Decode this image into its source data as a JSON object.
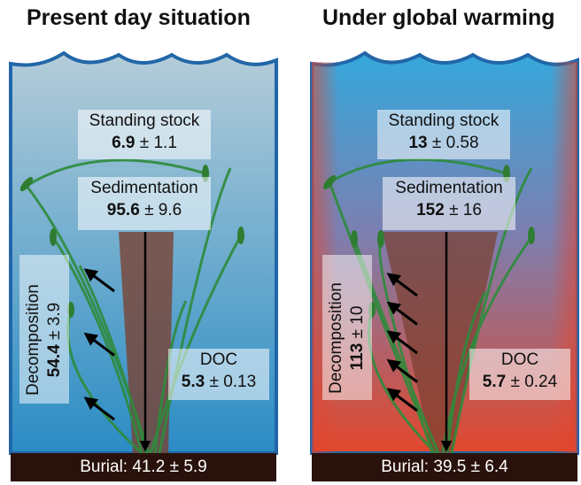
{
  "panels": [
    {
      "title": "Present day situation",
      "standing_stock": {
        "label": "Standing stock",
        "value": "6.9",
        "pm": "± 1.1"
      },
      "sedimentation": {
        "label": "Sedimentation",
        "value": "95.6",
        "pm": "± 9.6"
      },
      "decomposition": {
        "label": "Decomposition",
        "value": "54.4",
        "pm": "± 3.9"
      },
      "doc": {
        "label": "DOC",
        "value": "5.3",
        "pm": "± 0.13"
      },
      "burial": "Burial: 41.2 ± 5.9"
    },
    {
      "title": "Under global warming",
      "standing_stock": {
        "label": "Standing stock",
        "value": "13",
        "pm": "± 0.58"
      },
      "sedimentation": {
        "label": "Sedimentation",
        "value": "152",
        "pm": "± 16"
      },
      "decomposition": {
        "label": "Decomposition",
        "value": "113",
        "pm": "± 10"
      },
      "doc": {
        "label": "DOC",
        "value": "5.7",
        "pm": "± 0.24"
      },
      "burial": "Burial: 39.5 ± 6.4"
    }
  ],
  "colors": {
    "water_present_top": "#a9c4d3",
    "water_present_bottom": "#2f8fc4",
    "water_warm_top": "#3aa6d8",
    "water_warm_bottom": "#e14b2f",
    "wave_border": "#2166a8",
    "sediment": "#2a120c",
    "plant": "#2e8b3c",
    "flux_wedge": "#7a4030"
  },
  "decomposition_arrow_counts": [
    3,
    5
  ]
}
